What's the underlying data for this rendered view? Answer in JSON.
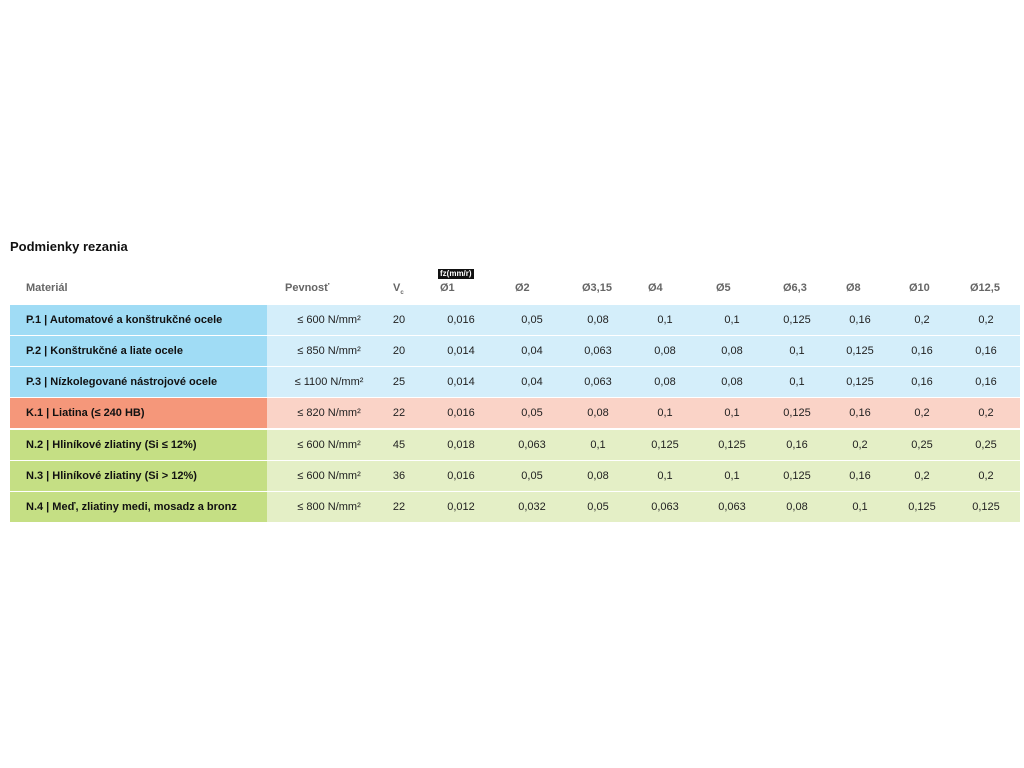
{
  "title": "Podmienky rezania",
  "headers": {
    "material": "Materiál",
    "strength": "Pevnosť",
    "vc": "V",
    "vc_sub": "c",
    "fz_label": "fz(mm/r)",
    "diameters": [
      "Ø1",
      "Ø2",
      "Ø3,15",
      "Ø4",
      "Ø5",
      "Ø6,3",
      "Ø8",
      "Ø10",
      "Ø12,5"
    ]
  },
  "colors": {
    "P": [
      "#a0dcf5",
      "#d4eefa"
    ],
    "K": [
      "#f5977a",
      "#fad3c7"
    ],
    "N": [
      "#c5df84",
      "#e4efc6"
    ]
  },
  "rows": [
    {
      "group": "P",
      "material": "P.1 | Automatové a konštrukčné ocele",
      "strength": "≤ 600 N/mm²",
      "vc": "20",
      "fz": [
        "0,016",
        "0,05",
        "0,08",
        "0,1",
        "0,1",
        "0,125",
        "0,16",
        "0,2",
        "0,2"
      ]
    },
    {
      "group": "P",
      "material": "P.2 | Konštrukčné a liate ocele",
      "strength": "≤ 850 N/mm²",
      "vc": "20",
      "fz": [
        "0,014",
        "0,04",
        "0,063",
        "0,08",
        "0,08",
        "0,1",
        "0,125",
        "0,16",
        "0,16"
      ]
    },
    {
      "group": "P",
      "material": "P.3 | Nízkolegované nástrojové ocele",
      "strength": "≤ 1100 N/mm²",
      "vc": "25",
      "fz": [
        "0,014",
        "0,04",
        "0,063",
        "0,08",
        "0,08",
        "0,1",
        "0,125",
        "0,16",
        "0,16"
      ]
    },
    {
      "group": "K",
      "material": "K.1 | Liatina (≤ 240 HB)",
      "strength": "≤ 820 N/mm²",
      "vc": "22",
      "fz": [
        "0,016",
        "0,05",
        "0,08",
        "0,1",
        "0,1",
        "0,125",
        "0,16",
        "0,2",
        "0,2"
      ]
    },
    {
      "group": "N",
      "material": "N.2 | Hliníkové zliatiny (Si ≤ 12%)",
      "strength": "≤ 600 N/mm²",
      "vc": "45",
      "fz": [
        "0,018",
        "0,063",
        "0,1",
        "0,125",
        "0,125",
        "0,16",
        "0,2",
        "0,25",
        "0,25"
      ]
    },
    {
      "group": "N",
      "material": "N.3 | Hliníkové zliatiny (Si > 12%)",
      "strength": "≤ 600 N/mm²",
      "vc": "36",
      "fz": [
        "0,016",
        "0,05",
        "0,08",
        "0,1",
        "0,1",
        "0,125",
        "0,16",
        "0,2",
        "0,2"
      ]
    },
    {
      "group": "N",
      "material": "N.4 | Meď, zliatiny medi, mosadz a bronz",
      "strength": "≤ 800 N/mm²",
      "vc": "22",
      "fz": [
        "0,012",
        "0,032",
        "0,05",
        "0,063",
        "0,063",
        "0,08",
        "0,1",
        "0,125",
        "0,125"
      ]
    }
  ]
}
